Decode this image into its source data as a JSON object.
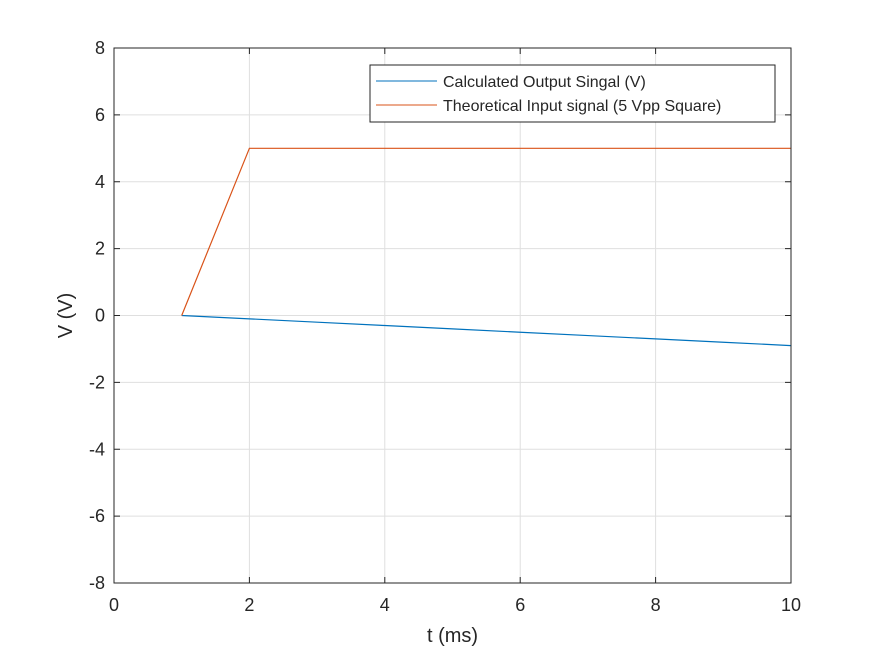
{
  "chart_data": {
    "type": "line",
    "xlabel": "t (ms)",
    "ylabel": "V (V)",
    "xlim": [
      0,
      10
    ],
    "ylim": [
      -8,
      8
    ],
    "xticks": [
      0,
      2,
      4,
      6,
      8,
      10
    ],
    "yticks": [
      -8,
      -6,
      -4,
      -2,
      0,
      2,
      4,
      6,
      8
    ],
    "xtick_labels": [
      "0",
      "2",
      "4",
      "6",
      "8",
      "10"
    ],
    "ytick_labels": [
      "-8",
      "-6",
      "-4",
      "-2",
      "0",
      "2",
      "4",
      "6",
      "8"
    ],
    "grid": true,
    "legend_position": "top-right",
    "series": [
      {
        "name": "Calculated Output Singal (V)",
        "color": "#0072BD",
        "x": [
          1,
          2,
          3,
          4,
          5,
          6,
          7,
          8,
          9,
          10
        ],
        "y": [
          0,
          -0.1,
          -0.2,
          -0.3,
          -0.4,
          -0.5,
          -0.6,
          -0.7,
          -0.8,
          -0.9
        ]
      },
      {
        "name": "Theoretical Input signal (5 Vpp Square)",
        "color": "#D95319",
        "x": [
          1,
          2,
          3,
          4,
          5,
          6,
          7,
          8,
          9,
          10
        ],
        "y": [
          0,
          5,
          5,
          5,
          5,
          5,
          5,
          5,
          5,
          5
        ]
      }
    ]
  }
}
